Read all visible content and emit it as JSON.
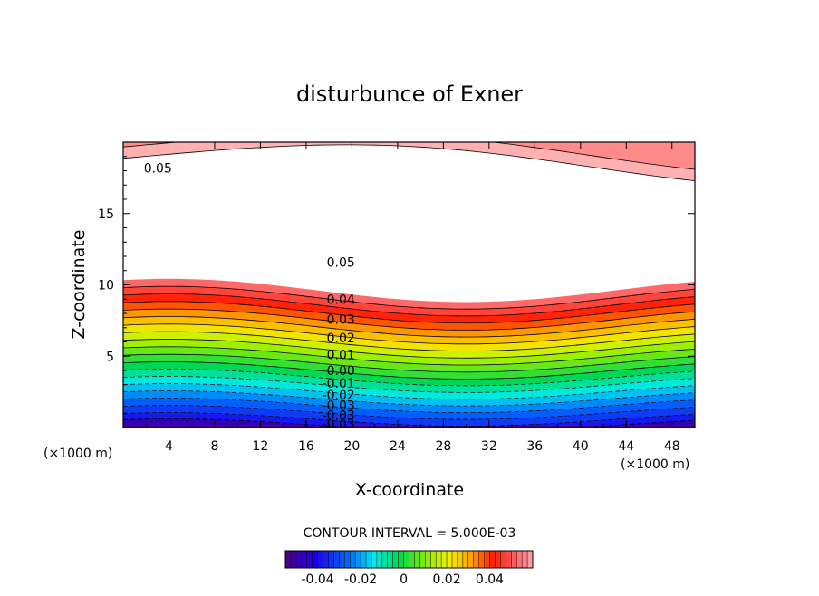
{
  "chart_data": {
    "type": "contour",
    "title": "disturbunce of Exner",
    "xlabel": "X-coordinate",
    "ylabel": "Z-coordinate",
    "x_unit": "(×1000 m)",
    "y_unit": "(×1000 m)",
    "xlim": [
      0,
      50
    ],
    "ylim": [
      0,
      20
    ],
    "x_ticks": [
      4,
      8,
      12,
      16,
      20,
      24,
      28,
      32,
      36,
      40,
      44,
      48
    ],
    "y_ticks": [
      5,
      10,
      15
    ],
    "contour_interval_text": "CONTOUR INTERVAL = 5.000E-03",
    "contour_labels": [
      {
        "text": "0.05",
        "x": 1.8,
        "z": 18.2
      },
      {
        "text": "0.05",
        "x": 17.8,
        "z": 11.6
      },
      {
        "text": "0.04",
        "x": 17.8,
        "z": 9.0
      },
      {
        "text": "0.03",
        "x": 17.8,
        "z": 7.6
      },
      {
        "text": "0.02",
        "x": 17.8,
        "z": 6.3
      },
      {
        "text": "0.01",
        "x": 17.8,
        "z": 5.1
      },
      {
        "text": "0.00",
        "x": 17.8,
        "z": 4.0
      },
      {
        "text": "-0.01",
        "x": 17.4,
        "z": 3.1
      },
      {
        "text": "-0.02",
        "x": 17.4,
        "z": 2.3
      },
      {
        "text": "-0.03",
        "x": 17.4,
        "z": 1.55
      },
      {
        "text": "-0.03",
        "x": 17.4,
        "z": 0.85
      },
      {
        "text": "-0.03",
        "x": 17.4,
        "z": 0.25
      }
    ],
    "colorbar": {
      "min": -0.055,
      "max": 0.06,
      "tick_values": [
        -0.04,
        -0.02,
        0,
        0.02,
        0.04
      ],
      "tick_labels": [
        "-0.04",
        "-0.02",
        "0",
        "0.02",
        "0.04"
      ]
    }
  }
}
